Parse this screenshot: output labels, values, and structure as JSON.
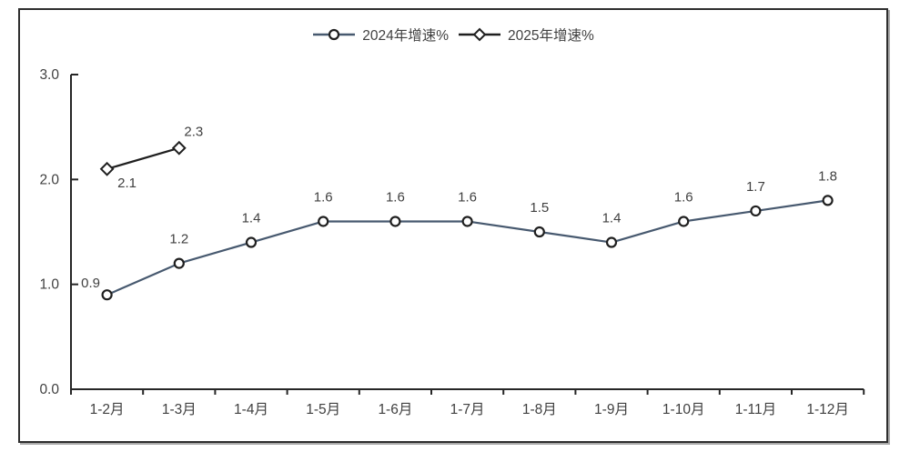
{
  "chart_data": {
    "type": "line",
    "categories": [
      "1-2月",
      "1-3月",
      "1-4月",
      "1-5月",
      "1-6月",
      "1-7月",
      "1-8月",
      "1-9月",
      "1-10月",
      "1-11月",
      "1-12月"
    ],
    "series": [
      {
        "name": "2024年增速%",
        "marker": "circle",
        "line_color": "#47596F",
        "marker_stroke": "#1f1f1f",
        "values": [
          0.9,
          1.2,
          1.4,
          1.6,
          1.6,
          1.6,
          1.5,
          1.4,
          1.6,
          1.7,
          1.8
        ],
        "data_labels": [
          "0.9",
          "1.2",
          "1.4",
          "1.6",
          "1.6",
          "1.6",
          "1.5",
          "1.4",
          "1.6",
          "1.7",
          "1.8"
        ]
      },
      {
        "name": "2025年增速%",
        "marker": "diamond",
        "line_color": "#1f1f1f",
        "marker_stroke": "#1f1f1f",
        "values": [
          2.1,
          2.3
        ],
        "data_labels": [
          "2.1",
          "2.3"
        ]
      }
    ],
    "title": "",
    "xlabel": "",
    "ylabel": "",
    "ylim": [
      0.0,
      3.0
    ],
    "yticks": [
      {
        "value": 0.0,
        "label": "0.0"
      },
      {
        "value": 1.0,
        "label": "1.0"
      },
      {
        "value": 2.0,
        "label": "2.0"
      },
      {
        "value": 3.0,
        "label": "3.0"
      }
    ],
    "legend_position": "top",
    "grid": false,
    "marker_fill": "#ffffff",
    "text_color": "#404040",
    "axis_color": "#262626"
  }
}
